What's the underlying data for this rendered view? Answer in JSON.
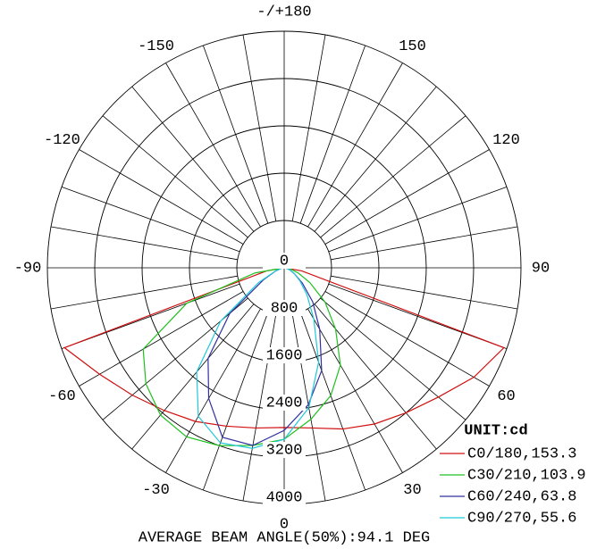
{
  "chart_data": {
    "type": "polar",
    "caption": "AVERAGE BEAM ANGLE(50%):94.1 DEG",
    "legend_title": "UNIT:cd",
    "rlim": [
      0,
      4000
    ],
    "rticks": [
      0,
      800,
      1600,
      2400,
      3200,
      4000
    ],
    "angle_ticks": [
      0,
      30,
      60,
      90,
      120,
      150,
      {
        "value": 180,
        "label": "-/+180"
      },
      -150,
      -120,
      -90,
      -60,
      -30
    ],
    "theta": [
      -90,
      -80,
      -70,
      -60,
      -50,
      -40,
      -30,
      -20,
      -10,
      0,
      10,
      20,
      30,
      40,
      50,
      60,
      70,
      80,
      90
    ],
    "series": [
      {
        "name": "C0/180,153.3",
        "color": "#d01010",
        "values": [
          0,
          300,
          3950,
          3600,
          3350,
          3150,
          3000,
          2850,
          2750,
          2700,
          2750,
          2900,
          3050,
          3200,
          3400,
          3700,
          3950,
          300,
          0
        ]
      },
      {
        "name": "C30/210,103.9",
        "color": "#20c020",
        "values": [
          0,
          500,
          1750,
          2750,
          3050,
          3250,
          3300,
          3200,
          3050,
          2900,
          2600,
          2300,
          1900,
          1350,
          900,
          500,
          250,
          100,
          0
        ]
      },
      {
        "name": "C60/240,63.8",
        "color": "#3030a0",
        "values": [
          0,
          50,
          150,
          400,
          1200,
          2000,
          2550,
          3050,
          3050,
          2750,
          2350,
          1850,
          1200,
          750,
          400,
          200,
          100,
          30,
          0
        ]
      },
      {
        "name": "C90/270,55.6",
        "color": "#20c8d8",
        "values": [
          0,
          50,
          150,
          500,
          1400,
          2300,
          2900,
          3150,
          3100,
          2900,
          2400,
          1700,
          1000,
          600,
          350,
          200,
          100,
          30,
          0
        ]
      }
    ]
  }
}
